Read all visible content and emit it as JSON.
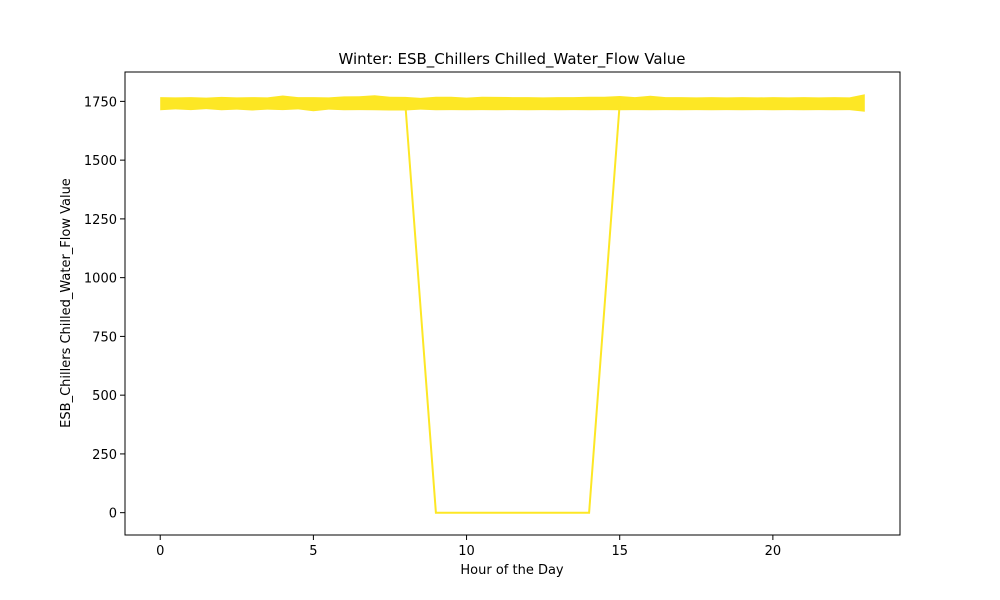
{
  "chart_data": {
    "type": "line",
    "title": "Winter: ESB_Chillers Chilled_Water_Flow Value",
    "xlabel": "Hour of the Day",
    "ylabel": "ESB_Chillers Chilled_Water_Flow Value",
    "xlim": [
      -1.15,
      24.15
    ],
    "ylim": [
      -95,
      1875
    ],
    "xticks": [
      0,
      5,
      10,
      15,
      20
    ],
    "yticks": [
      0,
      250,
      500,
      750,
      1000,
      1250,
      1500,
      1750
    ],
    "grid": false,
    "legend": "none",
    "color": "#fde725",
    "x": [
      0,
      0.5,
      1,
      1.5,
      2,
      2.5,
      3,
      3.5,
      4,
      4.5,
      5,
      5.5,
      6,
      6.5,
      7,
      7.5,
      8,
      8.5,
      9,
      9.5,
      10,
      10.5,
      11,
      11.5,
      12,
      12.5,
      13,
      13.5,
      14,
      14.5,
      15,
      15.5,
      16,
      16.5,
      17,
      17.5,
      18,
      18.5,
      19,
      19.5,
      20,
      20.5,
      21,
      21.5,
      22,
      22.5,
      23
    ],
    "upper": [
      1768,
      1767,
      1768,
      1766,
      1769,
      1767,
      1768,
      1767,
      1775,
      1768,
      1768,
      1767,
      1771,
      1772,
      1776,
      1770,
      1769,
      1765,
      1770,
      1770,
      1766,
      1770,
      1769,
      1768,
      1768,
      1767,
      1768,
      1768,
      1770,
      1770,
      1773,
      1768,
      1774,
      1768,
      1768,
      1767,
      1768,
      1767,
      1768,
      1767,
      1768,
      1767,
      1768,
      1767,
      1768,
      1767,
      1780
    ],
    "lower": [
      1712,
      1716,
      1713,
      1717,
      1712,
      1715,
      1711,
      1715,
      1713,
      1716,
      1708,
      1715,
      1712,
      1713,
      1712,
      1711,
      1711,
      1715,
      1712,
      1713,
      1712,
      1713,
      1712,
      1713,
      1712,
      1713,
      1712,
      1713,
      1712,
      1713,
      1712,
      1713,
      1712,
      1713,
      1712,
      1713,
      1712,
      1713,
      1712,
      1713,
      1712,
      1713,
      1712,
      1713,
      1712,
      1713,
      1706
    ],
    "line": {
      "x": [
        8,
        9,
        10,
        11,
        12,
        13,
        14,
        15
      ],
      "y": [
        1740,
        0,
        0,
        0,
        0,
        0,
        0,
        1740
      ]
    }
  }
}
